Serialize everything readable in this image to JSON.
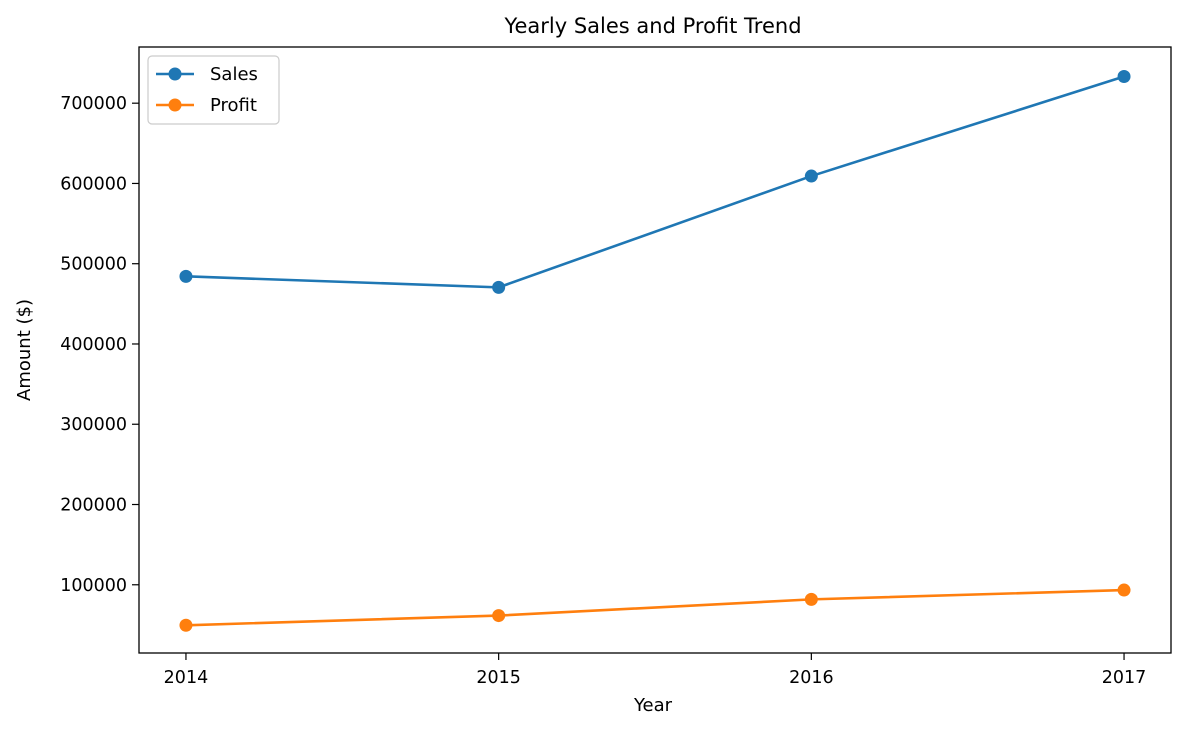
{
  "chart_data": {
    "type": "line",
    "title": "Yearly Sales and Profit Trend",
    "xlabel": "Year",
    "ylabel": "Amount ($)",
    "x": [
      2014,
      2015,
      2016,
      2017
    ],
    "x_tick_labels": [
      "2014",
      "2015",
      "2016",
      "2017"
    ],
    "y_ticks": [
      100000,
      200000,
      300000,
      400000,
      500000,
      600000,
      700000
    ],
    "y_tick_labels": [
      "100000",
      "200000",
      "300000",
      "400000",
      "500000",
      "600000",
      "700000"
    ],
    "ylim": [
      15000,
      770000
    ],
    "grid": false,
    "legend_position": "upper-left",
    "series": [
      {
        "name": "Sales",
        "color": "#1f77b4",
        "values": [
          484247,
          470533,
          609206,
          733215
        ]
      },
      {
        "name": "Profit",
        "color": "#ff7f0e",
        "values": [
          49544,
          61619,
          81795,
          93439
        ]
      }
    ]
  }
}
